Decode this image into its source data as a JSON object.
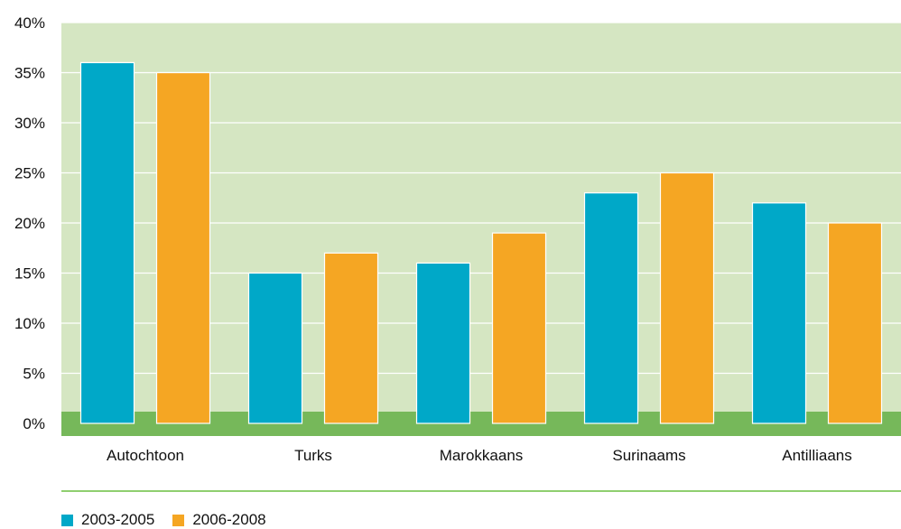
{
  "chart_data": {
    "type": "bar",
    "categories": [
      "Autochtoon",
      "Turks",
      "Marokkaans",
      "Surinaams",
      "Antilliaans"
    ],
    "series": [
      {
        "name": "2003-2005",
        "color": "#00a8c8",
        "values": [
          36,
          15,
          16,
          23,
          22
        ]
      },
      {
        "name": "2006-2008",
        "color": "#f5a623",
        "values": [
          35,
          17,
          19,
          25,
          20
        ]
      }
    ],
    "ylim": [
      0,
      40
    ],
    "yticks": [
      "0%",
      "5%",
      "10%",
      "15%",
      "20%",
      "25%",
      "30%",
      "35%",
      "40%"
    ],
    "grid": true,
    "legend_position": "bottom-left",
    "plot_background": "#d5e6c2",
    "baseline_color": "#76b85a",
    "title": "",
    "xlabel": "",
    "ylabel": ""
  }
}
